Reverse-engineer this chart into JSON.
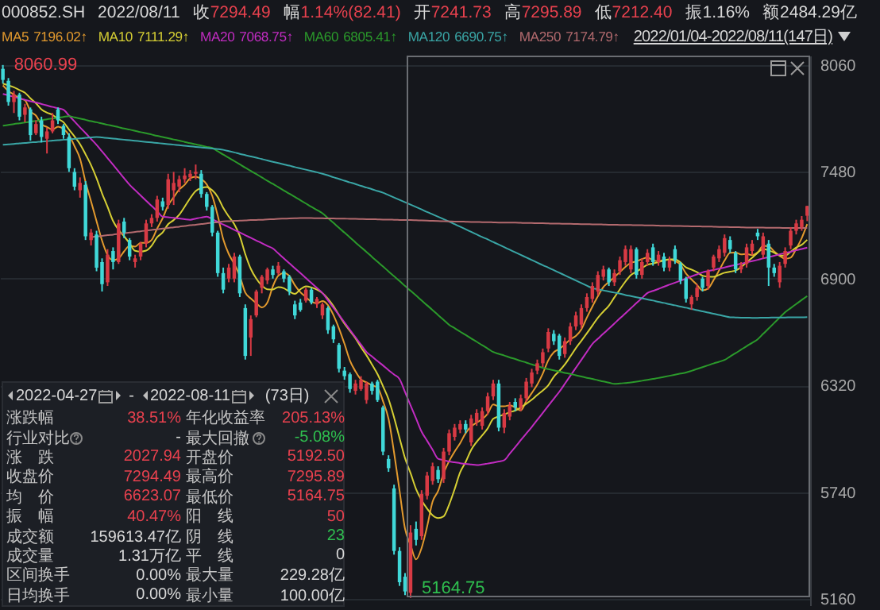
{
  "chart_data": [
    {
      "type": "candlestick",
      "title": "000852.SH",
      "legend": "top",
      "grid": "y",
      "ylim": [
        5125,
        8112
      ],
      "yticks": [
        5160,
        5740,
        6320,
        6900,
        7480,
        8060
      ],
      "annotations": [
        "2022/08/11",
        "收7294.49",
        "幅1.14%(82.41)",
        "开7241.73",
        "高7295.89",
        "低7212.40",
        "振1.16%",
        "额2484.29亿",
        "7196.02↑",
        "7111.29↑",
        "7068.75↑",
        "6805.41↑",
        "6690.75↑",
        "7174.79↑",
        "2022/01/04-2022/08/11(147日)",
        "8060.99",
        "5164.75"
      ],
      "categories": [
        null,
        null,
        null,
        null,
        null,
        null,
        null,
        null,
        null,
        null,
        null,
        null,
        null,
        null,
        null,
        null,
        null,
        null,
        null,
        null,
        null,
        null,
        null,
        null,
        null,
        null,
        null,
        null,
        null,
        null,
        null,
        null,
        null,
        null,
        null,
        null,
        null,
        null,
        null,
        null,
        null,
        null,
        null,
        null,
        null,
        null,
        null,
        null,
        null,
        null,
        null,
        null,
        null,
        null,
        null,
        null,
        null,
        null,
        null,
        null,
        null,
        null,
        null,
        null,
        null,
        null,
        null,
        null,
        null,
        null,
        null,
        null,
        null,
        null,
        null,
        null,
        null,
        null,
        null,
        null,
        null,
        null,
        null,
        null,
        null,
        null,
        null,
        null,
        null,
        null,
        null,
        null,
        null,
        null,
        null,
        null,
        null,
        null,
        null,
        null,
        null,
        null,
        null,
        null,
        null,
        null,
        null,
        null,
        null,
        null,
        null,
        null,
        null,
        null,
        null,
        null,
        null,
        null,
        null,
        null,
        null,
        null,
        null,
        null,
        null,
        null,
        null,
        null,
        null,
        null,
        null,
        null,
        null,
        null,
        null,
        null,
        null,
        null,
        null,
        null,
        null,
        null,
        null,
        null,
        null,
        null,
        null
      ],
      "ohlc": [
        [
          8040,
          8060.99,
          7960,
          7980
        ],
        [
          7975,
          7990,
          7840,
          7860
        ],
        [
          7860,
          7920,
          7800,
          7900
        ],
        [
          7900,
          7910,
          7760,
          7780
        ],
        [
          7790,
          7850,
          7750,
          7830
        ],
        [
          7820,
          7830,
          7650,
          7680
        ],
        [
          7690,
          7760,
          7680,
          7740
        ],
        [
          7760,
          7780,
          7640,
          7670
        ],
        [
          7660,
          7720,
          7580,
          7700
        ],
        [
          7700,
          7800,
          7690,
          7760
        ],
        [
          7820,
          7830,
          7740,
          7760
        ],
        [
          7730,
          7740,
          7660,
          7680
        ],
        [
          7670,
          7690,
          7480,
          7500
        ],
        [
          7480,
          7500,
          7380,
          7400
        ],
        [
          7380,
          7450,
          7340,
          7420
        ],
        [
          7410,
          7430,
          7110,
          7130
        ],
        [
          7110,
          7170,
          7080,
          7150
        ],
        [
          7140,
          7160,
          6940,
          6960
        ],
        [
          6990,
          7010,
          6830,
          6870
        ],
        [
          6880,
          7060,
          6860,
          7030
        ],
        [
          7050,
          7070,
          6950,
          6990
        ],
        [
          6990,
          7220,
          6980,
          7200
        ],
        [
          7210,
          7230,
          7120,
          7150
        ],
        [
          7110,
          7120,
          7000,
          7020
        ],
        [
          6990,
          7030,
          6960,
          7010
        ],
        [
          7020,
          7100,
          7000,
          7090
        ],
        [
          7090,
          7220,
          7070,
          7200
        ],
        [
          7200,
          7250,
          7180,
          7230
        ],
        [
          7230,
          7350,
          7210,
          7330
        ],
        [
          7320,
          7340,
          7270,
          7290
        ],
        [
          7300,
          7470,
          7280,
          7440
        ],
        [
          7380,
          7480,
          7300,
          7420
        ],
        [
          7400,
          7460,
          7370,
          7440
        ],
        [
          7440,
          7500,
          7420,
          7460
        ],
        [
          7450,
          7490,
          7430,
          7470
        ],
        [
          7470,
          7520,
          7440,
          7480
        ],
        [
          7470,
          7490,
          7340,
          7360
        ],
        [
          7360,
          7370,
          7270,
          7290
        ],
        [
          7290,
          7300,
          7130,
          7150
        ],
        [
          7150,
          7160,
          6910,
          6930
        ],
        [
          6930,
          6960,
          6820,
          6840
        ],
        [
          6900,
          6980,
          6880,
          6960
        ],
        [
          6900,
          7040,
          6880,
          7020
        ],
        [
          7020,
          7030,
          6800,
          6820
        ],
        [
          6740,
          6760,
          6460,
          6480
        ],
        [
          6580,
          6700,
          6480,
          6680
        ],
        [
          6700,
          6840,
          6690,
          6830
        ],
        [
          6850,
          6920,
          6820,
          6910
        ],
        [
          6890,
          6960,
          6870,
          6950
        ],
        [
          6950,
          6970,
          6900,
          6920
        ],
        [
          6930,
          6990,
          6920,
          6970
        ],
        [
          6940,
          6950,
          6880,
          6900
        ],
        [
          6910,
          6920,
          6810,
          6830
        ],
        [
          6760,
          6780,
          6680,
          6700
        ],
        [
          6770,
          6790,
          6720,
          6730
        ],
        [
          6780,
          6850,
          6770,
          6840
        ],
        [
          6840,
          6850,
          6760,
          6770
        ],
        [
          6760,
          6800,
          6740,
          6790
        ],
        [
          6700,
          6770,
          6680,
          6760
        ],
        [
          6740,
          6750,
          6600,
          6620
        ],
        [
          6640,
          6650,
          6550,
          6570
        ],
        [
          6540,
          6550,
          6390,
          6410
        ],
        [
          6400,
          6420,
          6350,
          6370
        ],
        [
          6380,
          6390,
          6280,
          6300
        ],
        [
          6290,
          6350,
          6270,
          6330
        ],
        [
          6300,
          6370,
          6290,
          6350
        ],
        [
          6240,
          6340,
          6220,
          6330
        ],
        [
          6330,
          6340,
          6270,
          6290
        ],
        [
          6340,
          6350,
          6230,
          6240
        ],
        [
          6200,
          6210,
          5940,
          5960
        ],
        [
          5920,
          5940,
          5850,
          5870
        ],
        [
          5760,
          5780,
          5400,
          5420
        ],
        [
          5420,
          5440,
          5230,
          5250
        ],
        [
          5280,
          5300,
          5180,
          5200
        ],
        [
          5192.5,
          5560,
          5164.75,
          5520
        ],
        [
          5540,
          5580,
          5450,
          5480
        ],
        [
          5500,
          5750,
          5480,
          5730
        ],
        [
          5720,
          5850,
          5700,
          5830
        ],
        [
          5800,
          5900,
          5780,
          5880
        ],
        [
          5860,
          5880,
          5790,
          5810
        ],
        [
          5810,
          5980,
          5790,
          5960
        ],
        [
          5960,
          6080,
          5940,
          6060
        ],
        [
          6040,
          6110,
          6020,
          6090
        ],
        [
          6080,
          6130,
          6060,
          6110
        ],
        [
          6110,
          6130,
          6060,
          6080
        ],
        [
          6010,
          6160,
          5990,
          6140
        ],
        [
          6120,
          6190,
          6100,
          6170
        ],
        [
          6100,
          6200,
          6080,
          6180
        ],
        [
          6180,
          6280,
          6160,
          6260
        ],
        [
          6260,
          6350,
          6240,
          6330
        ],
        [
          6330,
          6350,
          6070,
          6090
        ],
        [
          6090,
          6190,
          6060,
          6170
        ],
        [
          6150,
          6230,
          6130,
          6210
        ],
        [
          6230,
          6250,
          6180,
          6200
        ],
        [
          6200,
          6270,
          6180,
          6250
        ],
        [
          6250,
          6360,
          6230,
          6340
        ],
        [
          6330,
          6410,
          6310,
          6390
        ],
        [
          6400,
          6460,
          6380,
          6440
        ],
        [
          6440,
          6520,
          6420,
          6500
        ],
        [
          6520,
          6630,
          6500,
          6610
        ],
        [
          6600,
          6620,
          6540,
          6560
        ],
        [
          6590,
          6600,
          6460,
          6480
        ],
        [
          6490,
          6580,
          6470,
          6560
        ],
        [
          6560,
          6660,
          6540,
          6640
        ],
        [
          6640,
          6720,
          6620,
          6700
        ],
        [
          6650,
          6760,
          6630,
          6740
        ],
        [
          6740,
          6820,
          6720,
          6800
        ],
        [
          6790,
          6880,
          6770,
          6860
        ],
        [
          6830,
          6940,
          6810,
          6920
        ],
        [
          6910,
          6970,
          6890,
          6950
        ],
        [
          6950,
          6960,
          6860,
          6880
        ],
        [
          6880,
          6950,
          6860,
          6930
        ],
        [
          6940,
          7020,
          6920,
          7000
        ],
        [
          6990,
          7080,
          6970,
          7060
        ],
        [
          6950,
          7080,
          6930,
          7060
        ],
        [
          7060,
          7070,
          6900,
          6920
        ],
        [
          6920,
          7010,
          6900,
          6990
        ],
        [
          6990,
          7060,
          6970,
          7040
        ],
        [
          7070,
          7090,
          6970,
          6990
        ],
        [
          6990,
          7050,
          6970,
          7030
        ],
        [
          7020,
          7040,
          6940,
          6960
        ],
        [
          6960,
          7020,
          6940,
          7000
        ],
        [
          7060,
          7080,
          6980,
          7000
        ],
        [
          6980,
          6990,
          6870,
          6890
        ],
        [
          6900,
          6910,
          6770,
          6790
        ],
        [
          6760,
          6810,
          6730,
          6800
        ],
        [
          6800,
          6870,
          6780,
          6850
        ],
        [
          6900,
          6910,
          6830,
          6850
        ],
        [
          6860,
          6950,
          6840,
          6940
        ],
        [
          6960,
          7030,
          6940,
          7020
        ],
        [
          7010,
          7080,
          6990,
          7060
        ],
        [
          7040,
          7140,
          7020,
          7120
        ],
        [
          7110,
          7130,
          7040,
          7060
        ],
        [
          7040,
          7050,
          6930,
          6950
        ],
        [
          6950,
          6990,
          6930,
          6970
        ],
        [
          6980,
          7090,
          6960,
          7070
        ],
        [
          7050,
          7110,
          7030,
          7090
        ],
        [
          7150,
          7170,
          7110,
          7130
        ],
        [
          7030,
          7150,
          7010,
          7130
        ],
        [
          7090,
          7110,
          6860,
          6960
        ],
        [
          6960,
          6980,
          6910,
          6930
        ],
        [
          6880,
          6990,
          6850,
          6970
        ],
        [
          6980,
          7070,
          6960,
          7050
        ],
        [
          7080,
          7180,
          7060,
          7160
        ],
        [
          7160,
          7220,
          7140,
          7200
        ],
        [
          7180,
          7240,
          7160,
          7220
        ],
        [
          7241.73,
          7295.89,
          7212.4,
          7294.49
        ]
      ],
      "colors": [
        "#40d8d8",
        "#40d8d8",
        "#d83a44",
        "#40d8d8",
        "#d83a44",
        "#40d8d8",
        "#d83a44",
        "#40d8d8",
        "#d83a44",
        "#d83a44",
        "#40d8d8",
        "#40d8d8",
        "#40d8d8",
        "#40d8d8",
        "#d83a44",
        "#40d8d8",
        "#d83a44",
        "#40d8d8",
        "#40d8d8",
        "#d83a44",
        "#40d8d8",
        "#d83a44",
        "#40d8d8",
        "#40d8d8",
        "#d83a44",
        "#d83a44",
        "#d83a44",
        "#d83a44",
        "#d83a44",
        "#40d8d8",
        "#d83a44",
        "#d83a44",
        "#d83a44",
        "#d83a44",
        "#d83a44",
        "#d83a44",
        "#40d8d8",
        "#40d8d8",
        "#40d8d8",
        "#40d8d8",
        "#40d8d8",
        "#d83a44",
        "#d83a44",
        "#40d8d8",
        "#40d8d8",
        "#d83a44",
        "#d83a44",
        "#d83a44",
        "#d83a44",
        "#40d8d8",
        "#d83a44",
        "#40d8d8",
        "#40d8d8",
        "#40d8d8",
        "#40d8d8",
        "#d83a44",
        "#40d8d8",
        "#d83a44",
        "#d83a44",
        "#40d8d8",
        "#40d8d8",
        "#40d8d8",
        "#40d8d8",
        "#40d8d8",
        "#d83a44",
        "#d83a44",
        "#d83a44",
        "#40d8d8",
        "#40d8d8",
        "#40d8d8",
        "#40d8d8",
        "#40d8d8",
        "#40d8d8",
        "#40d8d8",
        "#d83a44",
        "#40d8d8",
        "#d83a44",
        "#d83a44",
        "#d83a44",
        "#40d8d8",
        "#d83a44",
        "#d83a44",
        "#d83a44",
        "#d83a44",
        "#40d8d8",
        "#d83a44",
        "#d83a44",
        "#d83a44",
        "#d83a44",
        "#d83a44",
        "#40d8d8",
        "#d83a44",
        "#d83a44",
        "#40d8d8",
        "#d83a44",
        "#d83a44",
        "#d83a44",
        "#d83a44",
        "#d83a44",
        "#d83a44",
        "#40d8d8",
        "#40d8d8",
        "#d83a44",
        "#d83a44",
        "#d83a44",
        "#d83a44",
        "#d83a44",
        "#d83a44",
        "#d83a44",
        "#d83a44",
        "#40d8d8",
        "#d83a44",
        "#d83a44",
        "#d83a44",
        "#d83a44",
        "#40d8d8",
        "#d83a44",
        "#d83a44",
        "#40d8d8",
        "#d83a44",
        "#40d8d8",
        "#d83a44",
        "#40d8d8",
        "#40d8d8",
        "#40d8d8",
        "#d83a44",
        "#d83a44",
        "#40d8d8",
        "#d83a44",
        "#d83a44",
        "#d83a44",
        "#d83a44",
        "#40d8d8",
        "#40d8d8",
        "#d83a44",
        "#d83a44",
        "#d83a44",
        "#40d8d8",
        "#d83a44",
        "#40d8d8",
        "#40d8d8",
        "#d83a44",
        "#d83a44",
        "#d83a44",
        "#d83a44",
        "#d83a44",
        "#d83a44"
      ],
      "series": [
        {
          "type": "line",
          "name": "MA5",
          "color": "#e39a2e",
          "values": [
            7950,
            7920,
            7900,
            7880,
            7870,
            7810,
            7786,
            7740,
            7724,
            7710,
            7726,
            7714,
            7680,
            7620,
            7552,
            7426,
            7320,
            7212,
            7106,
            7028,
            7000,
            7010,
            7048,
            7078,
            7074,
            7094,
            7094,
            7110,
            7172,
            7228,
            7298,
            7342,
            7384,
            7410,
            7446,
            7454,
            7442,
            7412,
            7350,
            7242,
            7114,
            7034,
            6980,
            6914,
            6824,
            6792,
            6766,
            6744,
            6770,
            6858,
            6916,
            6930,
            6914,
            6864,
            6826,
            6800,
            6774,
            6766,
            6778,
            6756,
            6702,
            6630,
            6546,
            6454,
            6396,
            6352,
            6336,
            6320,
            6308,
            6234,
            6138,
            5956,
            5748,
            5540,
            5452,
            5374,
            5436,
            5552,
            5688,
            5746,
            5842,
            5908,
            5960,
            6006,
            6060,
            6096,
            6118,
            6136,
            6166,
            6216,
            6206,
            6206,
            6212,
            6200,
            6184,
            6234,
            6278,
            6324,
            6384,
            6456,
            6500,
            6518,
            6542,
            6570,
            6588,
            6624,
            6688,
            6748,
            6804,
            6854,
            6882,
            6908,
            6936,
            6964,
            6986,
            6994,
            7006,
            7014,
            7000,
            6994,
            7002,
            7004,
            6996,
            6976,
            6928,
            6896,
            6866,
            6836,
            6846,
            6892,
            6944,
            6998,
            7040,
            7042,
            7032,
            7034,
            7028,
            7042,
            7078,
            7076,
            7048,
            7024,
            7008,
            7014,
            7062,
            7120,
            7196.02
          ]
        },
        {
          "type": "line",
          "name": "MA10",
          "color": "#d6cf34",
          "values": [
            7960,
            7950,
            7940,
            7925,
            7910,
            7880,
            7853,
            7820,
            7802,
            7790,
            7768,
            7750,
            7710,
            7672,
            7631,
            7576,
            7517,
            7446,
            7363,
            7290,
            7213,
            7165,
            7130,
            7092,
            7051,
            7047,
            7052,
            7079,
            7125,
            7151,
            7196,
            7218,
            7247,
            7291,
            7337,
            7376,
            7392,
            7398,
            7380,
            7344,
            7284,
            7238,
            7196,
            7132,
            7033,
            6953,
            6900,
            6862,
            6842,
            6841,
            6854,
            6848,
            6829,
            6817,
            6842,
            6858,
            6852,
            6840,
            6821,
            6791,
            6751,
            6702,
            6656,
            6616,
            6576,
            6527,
            6483,
            6433,
            6381,
            6315,
            6245,
            6146,
            6034,
            5924,
            5843,
            5756,
            5696,
            5650,
            5614,
            5599,
            5608,
            5672,
            5756,
            5847,
            5903,
            5969,
            6013,
            6048,
            6086,
            6138,
            6151,
            6162,
            6174,
            6183,
            6200,
            6220,
            6242,
            6268,
            6292,
            6320,
            6367,
            6398,
            6433,
            6477,
            6522,
            6562,
            6603,
            6645,
            6687,
            6721,
            6753,
            6798,
            6842,
            6884,
            6920,
            6938,
            6957,
            6975,
            6982,
            6990,
            6998,
            7005,
            7005,
            6988,
            6961,
            6949,
            6935,
            6916,
            6911,
            6910,
            6920,
            6932,
            6938,
            6944,
            6962,
            6989,
            7013,
            7041,
            7060,
            7054,
            7041,
            7026,
            7025,
            7046,
            7069,
            7084,
            7111.29
          ]
        },
        {
          "type": "line",
          "name": "MA20",
          "color": "#c22cc2",
          "values": [
            7904,
            7896,
            7888,
            7880,
            7872,
            7864,
            7857,
            7849,
            7841,
            7833,
            7826,
            7818,
            7786,
            7754,
            7722,
            7691,
            7659,
            7627,
            7591,
            7555,
            7519,
            7482,
            7446,
            7410,
            7381,
            7352,
            7323,
            7295,
            7266,
            7237,
            7234,
            7230,
            7227,
            7223,
            7220,
            7226,
            7232,
            7237,
            7223,
            7208,
            7194,
            7180,
            7165,
            7151,
            7136,
            7122,
            7107,
            7093,
            7078,
            7064,
            7037,
            7010,
            6983,
            6956,
            6930,
            6903,
            6876,
            6849,
            6822,
            6782,
            6742,
            6702,
            6662,
            6621,
            6581,
            6541,
            6501,
            6477,
            6452,
            6428,
            6403,
            6379,
            6354,
            6283,
            6211,
            6140,
            6068,
            6019,
            5970,
            5921,
            5914,
            5906,
            5902,
            5897,
            5893,
            5890,
            5887,
            5890,
            5895,
            5900,
            5906,
            5913,
            5949,
            5985,
            6022,
            6058,
            6094,
            6132,
            6170,
            6209,
            6247,
            6285,
            6328,
            6372,
            6415,
            6458,
            6502,
            6545,
            6573,
            6601,
            6628,
            6656,
            6684,
            6711,
            6739,
            6767,
            6794,
            6822,
            6833,
            6844,
            6856,
            6867,
            6878,
            6889,
            6900,
            6912,
            6923,
            6934,
            6941,
            6948,
            6954,
            6961,
            6968,
            6975,
            6981,
            6988,
            6995,
            7002,
            7010,
            7017,
            7024,
            7032,
            7039,
            7046,
            7054,
            7061,
            7068.75
          ]
        },
        {
          "type": "line",
          "name": "MA60",
          "color": "#2b9a2b",
          "values": [
            7731,
            7735,
            7740,
            7744,
            7748,
            7753,
            7757,
            7761,
            7766,
            7770,
            7774,
            7779,
            7783,
            7776,
            7770,
            7763,
            7756,
            7750,
            7743,
            7736,
            7730,
            7723,
            7716,
            7710,
            7703,
            7696,
            7690,
            7683,
            7676,
            7670,
            7663,
            7656,
            7650,
            7643,
            7636,
            7630,
            7623,
            7616,
            7610,
            7592,
            7574,
            7557,
            7539,
            7521,
            7503,
            7486,
            7468,
            7450,
            7432,
            7415,
            7397,
            7379,
            7361,
            7344,
            7326,
            7308,
            7290,
            7273,
            7255,
            7229,
            7203,
            7176,
            7150,
            7124,
            7097,
            7071,
            7045,
            7018,
            6992,
            6966,
            6939,
            6913,
            6887,
            6860,
            6834,
            6808,
            6781,
            6755,
            6729,
            6702,
            6676,
            6649,
            6631,
            6612,
            6594,
            6575,
            6557,
            6538,
            6520,
            6501,
            6491,
            6482,
            6472,
            6463,
            6453,
            6444,
            6434,
            6425,
            6415,
            6408,
            6402,
            6395,
            6388,
            6382,
            6375,
            6368,
            6361,
            6355,
            6348,
            6341,
            6335,
            6328,
            6330,
            6333,
            6336,
            6340,
            6345,
            6350,
            6355,
            6360,
            6366,
            6372,
            6378,
            6384,
            6390,
            6399,
            6409,
            6419,
            6429,
            6439,
            6448,
            6458,
            6477,
            6495,
            6514,
            6533,
            6551,
            6570,
            6600,
            6629,
            6659,
            6688,
            6718,
            6740,
            6762,
            6784,
            6805.41
          ]
        },
        {
          "type": "line",
          "name": "MA120",
          "color": "#3aa6a6",
          "values": [
            7627,
            7630,
            7632,
            7635,
            7637,
            7640,
            7642,
            7645,
            7647,
            7650,
            7652,
            7655,
            7657,
            7660,
            7662,
            7665,
            7667,
            7670,
            7667,
            7664,
            7661,
            7658,
            7655,
            7652,
            7649,
            7646,
            7643,
            7640,
            7637,
            7634,
            7631,
            7628,
            7625,
            7622,
            7619,
            7616,
            7613,
            7610,
            7607,
            7604,
            7600,
            7593,
            7586,
            7578,
            7571,
            7564,
            7557,
            7550,
            7542,
            7535,
            7528,
            7521,
            7514,
            7506,
            7499,
            7492,
            7485,
            7478,
            7470,
            7461,
            7451,
            7442,
            7432,
            7423,
            7414,
            7404,
            7395,
            7386,
            7376,
            7367,
            7354,
            7341,
            7328,
            7315,
            7302,
            7289,
            7276,
            7262,
            7249,
            7236,
            7223,
            7210,
            7196,
            7182,
            7168,
            7154,
            7140,
            7126,
            7113,
            7099,
            7085,
            7071,
            7057,
            7043,
            7029,
            7015,
            7001,
            6987,
            6973,
            6960,
            6946,
            6932,
            6918,
            6904,
            6890,
            6876,
            6862,
            6848,
            6842,
            6836,
            6830,
            6824,
            6818,
            6811,
            6805,
            6799,
            6793,
            6787,
            6781,
            6774,
            6768,
            6761,
            6755,
            6748,
            6742,
            6735,
            6729,
            6722,
            6716,
            6709,
            6703,
            6696,
            6690,
            6689,
            6688,
            6688,
            6687,
            6687,
            6688,
            6688,
            6689,
            6689,
            6689,
            6690,
            6690,
            6690,
            6690.75
          ]
        },
        {
          "type": "line",
          "name": "MA250",
          "color": "#b36a6e",
          "values": [
            null,
            null,
            null,
            null,
            null,
            null,
            null,
            null,
            null,
            null,
            null,
            null,
            null,
            null,
            null,
            null,
            7125,
            7129,
            7132,
            7136,
            7139,
            7143,
            7147,
            7150,
            7154,
            7157,
            7161,
            7165,
            7168,
            7172,
            7175,
            7179,
            7182,
            7186,
            7190,
            7193,
            7197,
            7200,
            7204,
            7207,
            7211,
            7212,
            7214,
            7215,
            7216,
            7218,
            7219,
            7220,
            7222,
            7223,
            7225,
            7226,
            7227,
            7228,
            7229,
            7229,
            7229,
            7228,
            7228,
            7227,
            7227,
            7226,
            7226,
            7225,
            7225,
            7224,
            7223,
            7223,
            7222,
            7221,
            7221,
            7220,
            7219,
            7218,
            7218,
            7217,
            7216,
            7215,
            7214,
            7213,
            7212,
            7211,
            7210,
            7210,
            7209,
            7208,
            7208,
            7207,
            7207,
            7206,
            7205,
            7205,
            7204,
            7204,
            7203,
            7202,
            7202,
            7201,
            7201,
            7200,
            7199,
            7199,
            7198,
            7198,
            7197,
            7196,
            7196,
            7195,
            7195,
            7194,
            7193,
            7193,
            7192,
            7192,
            7191,
            7190,
            7190,
            7189,
            7189,
            7188,
            7187,
            7187,
            7186,
            7186,
            7185,
            7184,
            7184,
            7183,
            7183,
            7182,
            7181,
            7181,
            7180,
            7180,
            7179,
            7178,
            7178,
            7177,
            7177,
            7176,
            7176,
            7176,
            7175,
            7175,
            7175,
            7175,
            7174.79
          ]
        }
      ]
    },
    {
      "type": "other",
      "annotations": [
        "2022-04-27",
        "-",
        "2022-08-11",
        "(73日)",
        "涨跌幅",
        "38.51%",
        "年化收益率",
        "205.13%",
        "行业对比",
        "-",
        "最大回撤",
        "-5.08%",
        "涨跌",
        "2027.94",
        "开盘价",
        "5192.50",
        "收盘价",
        "7294.49",
        "最高价",
        "7295.89",
        "均价",
        "6623.07",
        "最低价",
        "5164.75",
        "振幅",
        "40.47%",
        "阳线",
        "50",
        "成交额",
        "159613.47亿",
        "阴线",
        "23",
        "成交量",
        "1.31万亿",
        "平线",
        "0",
        "区间换手",
        "0.00%",
        "最大量",
        "229.28亿",
        "日均换手",
        "0.00%",
        "最小量",
        "100.00亿"
      ],
      "colors": [
        "#d8d8d8",
        "#d8d8d8",
        "#d8d8d8",
        "#d8d8d8",
        "#c4c4c4",
        "#e8414e",
        "#c4c4c4",
        "#e8414e",
        "#c4c4c4",
        "#d8d8d8",
        "#c4c4c4",
        "#2fbf4f",
        "#c4c4c4",
        "#e8414e",
        "#c4c4c4",
        "#e8414e",
        "#c4c4c4",
        "#e8414e",
        "#c4c4c4",
        "#e8414e",
        "#c4c4c4",
        "#e8414e",
        "#c4c4c4",
        "#e8414e",
        "#c4c4c4",
        "#e8414e",
        "#c4c4c4",
        "#e8414e",
        "#c4c4c4",
        "#d8d8d8",
        "#c4c4c4",
        "#2fbf4f",
        "#c4c4c4",
        "#d8d8d8",
        "#c4c4c4",
        "#d8d8d8",
        "#c4c4c4",
        "#d8d8d8",
        "#c4c4c4",
        "#d8d8d8",
        "#c4c4c4",
        "#d8d8d8",
        "#c4c4c4",
        "#d8d8d8"
      ]
    }
  ]
}
